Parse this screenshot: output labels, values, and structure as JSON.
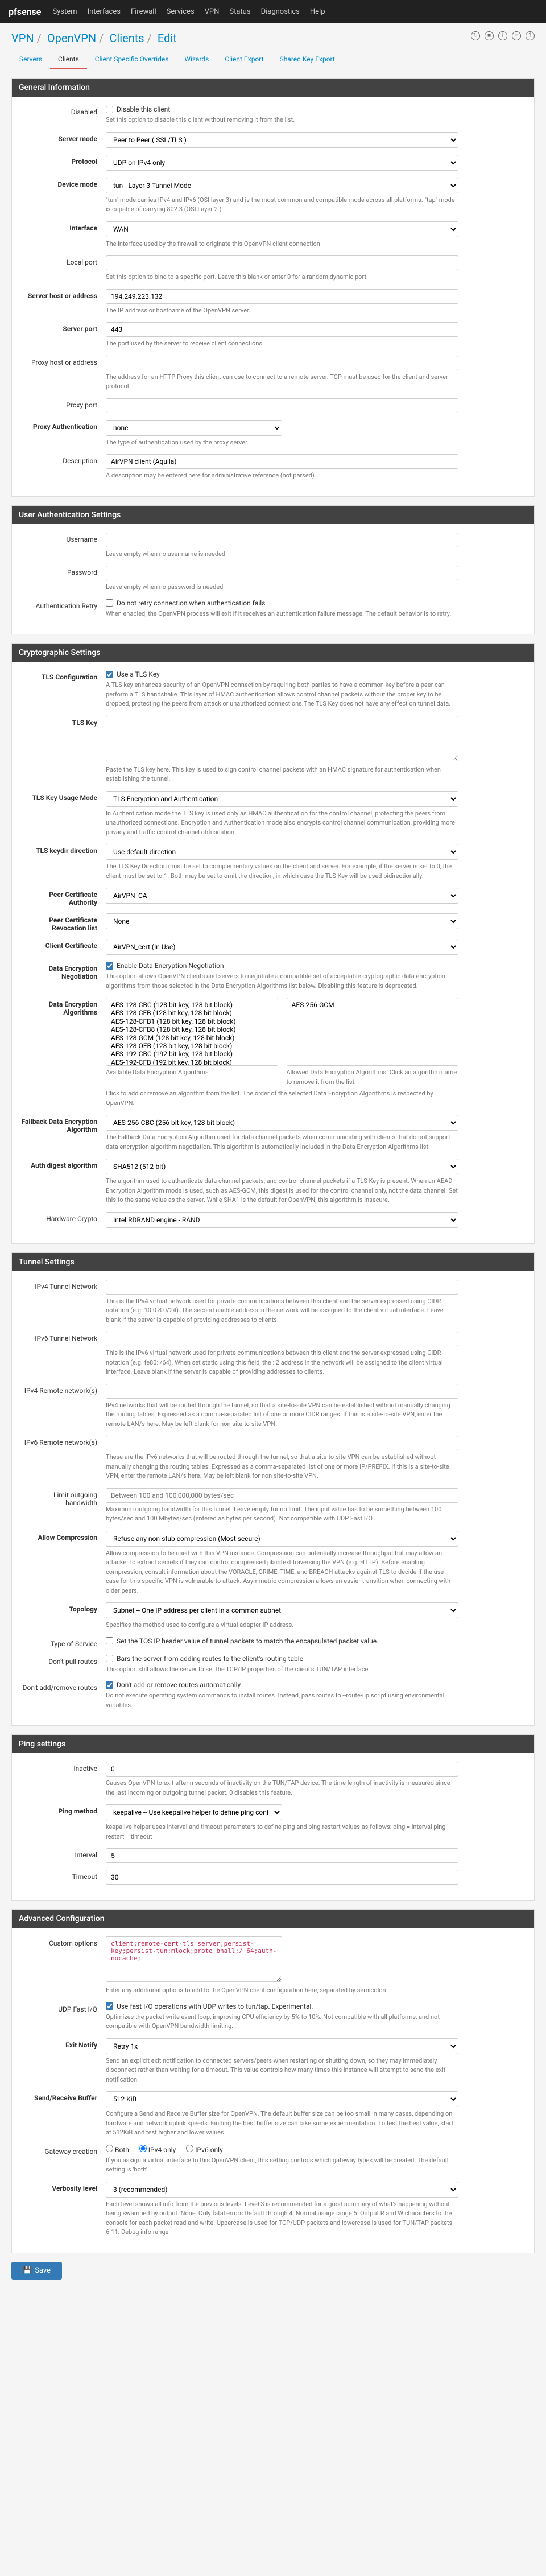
{
  "topbar": {
    "logo": "pfsense",
    "menu": [
      "System",
      "Interfaces",
      "Firewall",
      "Services",
      "VPN",
      "Status",
      "Diagnostics",
      "Help"
    ]
  },
  "breadcrumb": {
    "items": [
      "VPN",
      "OpenVPN",
      "Clients",
      "Edit"
    ]
  },
  "tabs": {
    "items": [
      "Servers",
      "Clients",
      "Client Specific Overrides",
      "Wizards",
      "Client Export",
      "Shared Key Export"
    ],
    "active": 1
  },
  "panels": {
    "general": {
      "title": "General Information",
      "fields": {
        "disabled": {
          "label": "Disabled",
          "checkbox": "Disable this client",
          "help": "Set this option to disable this client without removing it from the list."
        },
        "server_mode": {
          "label": "Server mode",
          "value": "Peer to Peer ( SSL/TLS )"
        },
        "protocol": {
          "label": "Protocol",
          "value": "UDP on IPv4 only"
        },
        "device_mode": {
          "label": "Device mode",
          "value": "tun - Layer 3 Tunnel Mode",
          "help": "\"tun\" mode carries IPv4 and IPv6 (OSI layer 3) and is the most common and compatible mode across all platforms.\n\"tap\" mode is capable of carrying 802.3 (OSI Layer 2.)"
        },
        "interface": {
          "label": "Interface",
          "value": "WAN",
          "help": "The interface used by the firewall to originate this OpenVPN client connection"
        },
        "local_port": {
          "label": "Local port",
          "value": "",
          "help": "Set this option to bind to a specific port. Leave this blank or enter 0 for a random dynamic port."
        },
        "server_host": {
          "label": "Server host or address",
          "value": "194.249.223.132",
          "help": "The IP address or hostname of the OpenVPN server."
        },
        "server_port": {
          "label": "Server port",
          "value": "443",
          "help": "The port used by the server to receive client connections."
        },
        "proxy_host": {
          "label": "Proxy host or address",
          "value": "",
          "help": "The address for an HTTP Proxy this client can use to connect to a remote server.\nTCP must be used for the client and server protocol."
        },
        "proxy_port": {
          "label": "Proxy port",
          "value": ""
        },
        "proxy_auth": {
          "label": "Proxy Authentication",
          "value": "none",
          "help": "The type of authentication used by the proxy server."
        },
        "description": {
          "label": "Description",
          "value": "AirVPN client (Aquila)",
          "help": "A description may be entered here for administrative reference (not parsed)."
        }
      }
    },
    "userauth": {
      "title": "User Authentication Settings",
      "fields": {
        "username": {
          "label": "Username",
          "value": "",
          "help": "Leave empty when no user name is needed"
        },
        "password": {
          "label": "Password",
          "value": "",
          "help": "Leave empty when no password is needed"
        },
        "auth_retry": {
          "label": "Authentication Retry",
          "checkbox": "Do not retry connection when authentication fails",
          "help": "When enabled, the OpenVPN process will exit if it receives an authentication failure message. The default behavior is to retry."
        }
      }
    },
    "crypto": {
      "title": "Cryptographic Settings",
      "fields": {
        "tls_config": {
          "label": "TLS Configuration",
          "checkbox": "Use a TLS Key",
          "checked": true,
          "help": "A TLS key enhances security of an OpenVPN connection by requiring both parties to have a common key before a peer can perform a TLS handshake. This layer of HMAC authentication allows control channel packets without the proper key to be dropped, protecting the peers from attack or unauthorized connections.The TLS Key does not have any effect on tunnel data."
        },
        "tls_key": {
          "label": "TLS Key",
          "value": "",
          "help": "Paste the TLS key here.\nThis key is used to sign control channel packets with an HMAC signature for authentication when establishing the tunnel."
        },
        "tls_usage": {
          "label": "TLS Key Usage Mode",
          "value": "TLS Encryption and Authentication",
          "help": "In Authentication mode the TLS key is used only as HMAC authentication for the control channel, protecting the peers from unauthorized connections.\nEncryption and Authentication mode also encrypts control channel communication, providing more privacy and traffic control channel obfuscation."
        },
        "tls_keydir": {
          "label": "TLS keydir direction",
          "value": "Use default direction",
          "help": "The TLS Key Direction must be set to complementary values on the client and server. For example, if the server is set to 0, the client must be set to 1. Both may be set to omit the direction, in which case the TLS Key will be used bidirectionally."
        },
        "peer_ca": {
          "label": "Peer Certificate Authority",
          "value": "AirVPN_CA"
        },
        "peer_crl": {
          "label": "Peer Certificate Revocation list",
          "value": "None"
        },
        "client_cert": {
          "label": "Client Certificate",
          "value": "AirVPN_cert (In Use)"
        },
        "data_enc_neg": {
          "label": "Data Encryption Negotiation",
          "checkbox": "Enable Data Encryption Negotiation",
          "checked": true,
          "help": "This option allows OpenVPN clients and servers to negotiate a compatible set of acceptable cryptographic data encryption algorithms from those selected in the Data Encryption Algorithms list below. Disabling this feature is deprecated."
        },
        "data_enc_alg": {
          "label": "Data Encryption Algorithms",
          "available": [
            "AES-128-CBC (128 bit key, 128 bit block)",
            "AES-128-CFB (128 bit key, 128 bit block)",
            "AES-128-CFB1 (128 bit key, 128 bit block)",
            "AES-128-CFB8 (128 bit key, 128 bit block)",
            "AES-128-GCM (128 bit key, 128 bit block)",
            "AES-128-OFB (128 bit key, 128 bit block)",
            "AES-192-CBC (192 bit key, 128 bit block)",
            "AES-192-CFB (192 bit key, 128 bit block)",
            "AES-192-CFB1 (192 bit key, 128 bit block)",
            "AES-192-CFB8 (192 bit key, 128 bit block)"
          ],
          "selected": [
            "AES-256-GCM"
          ],
          "help": "Click to add or remove an algorithm from the list.\n\nThe order of the selected Data Encryption Algorithms is respected by OpenVPN.",
          "available_label": "Available Data Encryption Algorithms",
          "selected_label": "Allowed Data Encryption Algorithms. Click an algorithm name to remove it from the list."
        },
        "fallback": {
          "label": "Fallback Data Encryption Algorithm",
          "value": "AES-256-CBC (256 bit key, 128 bit block)",
          "help": "The Fallback Data Encryption Algorithm used for data channel packets when communicating with clients that do not support data encryption algorithm negotiation. This algorithm is automatically included in the Data Encryption Algorithms list."
        },
        "auth_digest": {
          "label": "Auth digest algorithm",
          "value": "SHA512 (512-bit)",
          "help": "The algorithm used to authenticate data channel packets, and control channel packets if a TLS Key is present.\nWhen an AEAD Encryption Algorithm mode is used, such as AES-GCM, this digest is used for the control channel only, not the data channel.\nSet this to the same value as the server. While SHA1 is the default for OpenVPN, this algorithm is insecure."
        },
        "hw_crypto": {
          "label": "Hardware Crypto",
          "value": "Intel RDRAND engine - RAND"
        }
      }
    },
    "tunnel": {
      "title": "Tunnel Settings",
      "fields": {
        "ipv4_tunnel": {
          "label": "IPv4 Tunnel Network",
          "value": "",
          "help": "This is the IPv4 virtual network used for private communications between this client and the server expressed using CIDR notation (e.g. 10.0.8.0/24). The second usable address in the network will be assigned to the client virtual interface. Leave blank if the server is capable of providing addresses to clients."
        },
        "ipv6_tunnel": {
          "label": "IPv6 Tunnel Network",
          "value": "",
          "help": "This is the IPv6 virtual network used for private communications between this client and the server expressed using CIDR notation (e.g. fe80::/64). When set static using this field, the ::2 address in the network will be assigned to the client virtual interface. Leave blank if the server is capable of providing addresses to clients."
        },
        "ipv4_remote": {
          "label": "IPv4 Remote network(s)",
          "value": "",
          "help": "IPv4 networks that will be routed through the tunnel, so that a site-to-site VPN can be established without manually changing the routing tables. Expressed as a comma-separated list of one or more CIDR ranges. If this is a site-to-site VPN, enter the remote LAN/s here. May be left blank for non site-to-site VPN."
        },
        "ipv6_remote": {
          "label": "IPv6 Remote network(s)",
          "value": "",
          "help": "These are the IPv6 networks that will be routed through the tunnel, so that a site-to-site VPN can be established without manually changing the routing tables. Expressed as a comma-separated list of one or more IP/PREFIX. If this is a site-to-site VPN, enter the remote LAN/s here. May be left blank for non site-to-site VPN."
        },
        "limit_bw": {
          "label": "Limit outgoing bandwidth",
          "value": "",
          "placeholder": "Between 100 and 100,000,000 bytes/sec",
          "help": "Maximum outgoing bandwidth for this tunnel. Leave empty for no limit. The input value has to be something between 100 bytes/sec and 100 Mbytes/sec (entered as bytes per second). Not compatible with UDP Fast I/O."
        },
        "compression": {
          "label": "Allow Compression",
          "value": "Refuse any non-stub compression (Most secure)",
          "help": "Allow compression to be used with this VPN instance.\nCompression can potentially increase throughput but may allow an attacker to extract secrets if they can control compressed plaintext traversing the VPN (e.g. HTTP). Before enabling compression, consult information about the VORACLE, CRIME, TIME, and BREACH attacks against TLS to decide if the use case for this specific VPN is vulnerable to attack.\n\nAsymmetric compression allows an easier transition when connecting with older peers."
        },
        "topology": {
          "label": "Topology",
          "value": "Subnet -- One IP address per client in a common subnet",
          "help": "Specifies the method used to configure a virtual adapter IP address."
        },
        "tos": {
          "label": "Type-of-Service",
          "checkbox": "Set the TOS IP header value of tunnel packets to match the encapsulated packet value."
        },
        "no_pull": {
          "label": "Don't pull routes",
          "checkbox": "Bars the server from adding routes to the client's routing table",
          "help": "This option still allows the server to set the TCP/IP properties of the client's TUN/TAP interface."
        },
        "no_add": {
          "label": "Don't add/remove routes",
          "checkbox": "Don't add or remove routes automatically",
          "checked": true,
          "help": "Do not execute operating system commands to install routes. Instead, pass routes to --route-up script using environmental variables."
        }
      }
    },
    "ping": {
      "title": "Ping settings",
      "fields": {
        "inactive": {
          "label": "Inactive",
          "value": "0",
          "help": "Causes OpenVPN to exit after n seconds of inactivity on the TUN/TAP device.\nThe time length of inactivity is measured since the last incoming or outgoing tunnel packet.\n0 disables this feature."
        },
        "ping_method": {
          "label": "Ping method",
          "value": "keepalive -- Use keepalive helper to define ping configu",
          "help": "keepalive helper uses interval and timeout parameters to define ping and ping-restart values as follows:\nping = interval\nping-restart = timeout"
        },
        "interval": {
          "label": "Interval",
          "value": "5"
        },
        "timeout": {
          "label": "Timeout",
          "value": "30"
        }
      }
    },
    "advanced": {
      "title": "Advanced Configuration",
      "fields": {
        "custom": {
          "label": "Custom options",
          "value": "client;remote-cert-tls server;persist-key;persist-tun;mlock;proto bhall;/ 64;auth-nocache;",
          "help": "Enter any additional options to add to the OpenVPN client configuration here, separated by semicolon."
        },
        "udp_fast": {
          "label": "UDP Fast I/O",
          "checkbox": "Use fast I/O operations with UDP writes to tun/tap. Experimental.",
          "checked": true,
          "help": "Optimizes the packet write event loop, improving CPU efficiency by 5% to 10%. Not compatible with all platforms, and not compatible with OpenVPN bandwidth limiting."
        },
        "exit_notify": {
          "label": "Exit Notify",
          "value": "Retry 1x",
          "help": "Send an explicit exit notification to connected servers/peers when restarting or shutting down, so they may immediately disconnect rather than waiting for a timeout. This value controls how many times this instance will attempt to send the exit notification."
        },
        "sndrcv": {
          "label": "Send/Receive Buffer",
          "value": "512 KiB",
          "help": "Configure a Send and Receive Buffer size for OpenVPN. The default buffer size can be too small in many cases, depending on hardware and network uplink speeds. Finding the best buffer size can take some experimentation. To test the best value, start at 512KiB and test higher and lower values."
        },
        "gateway": {
          "label": "Gateway creation",
          "options": [
            "Both",
            "IPv4 only",
            "IPv6 only"
          ],
          "selected": 1,
          "help": "If you assign a virtual interface to this OpenVPN client, this setting controls which gateway types will be created. The default setting is 'both'."
        },
        "verbosity": {
          "label": "Verbosity level",
          "value": "3 (recommended)",
          "help": "Each level shows all info from the previous levels. Level 3 is recommended for a good summary of what's happening without being swamped by output.\n\nNone: Only fatal errors\nDefault through 4: Normal usage range\n5: Output R and W characters to the console for each packet read and write. Uppercase is used for TCP/UDP packets and lowercase is used for TUN/TAP packets.\n6-11: Debug info range"
        }
      }
    }
  },
  "save_btn": "Save"
}
